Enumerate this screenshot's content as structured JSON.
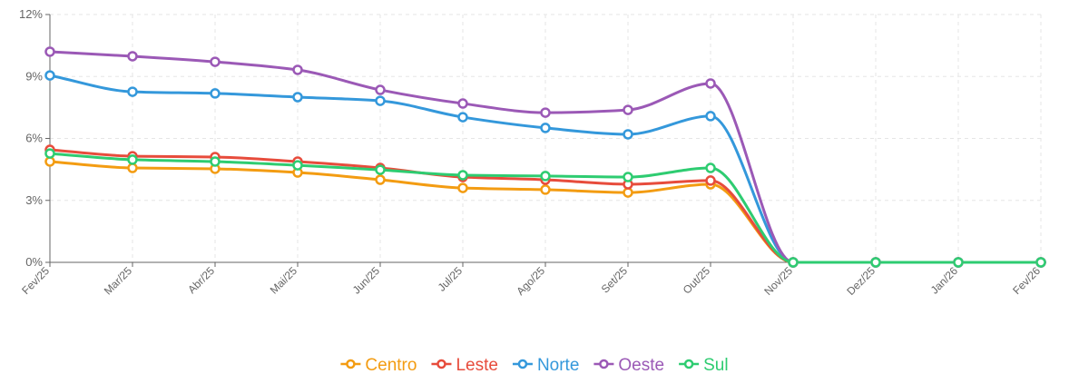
{
  "chart_data": {
    "type": "line",
    "categories": [
      "Fev/25",
      "Mar/25",
      "Abr/25",
      "Mai/25",
      "Jun/25",
      "Jul/25",
      "Ago/25",
      "Set/25",
      "Out/25",
      "Nov/25",
      "Dez/25",
      "Jan/26",
      "Fev/26"
    ],
    "series": [
      {
        "name": "Centro",
        "color": "#f39c12",
        "values": [
          4.88,
          4.57,
          4.53,
          4.35,
          4.0,
          3.6,
          3.52,
          3.38,
          3.78,
          0,
          0,
          0,
          0
        ]
      },
      {
        "name": "Leste",
        "color": "#e74c3c",
        "values": [
          5.45,
          5.14,
          5.1,
          4.88,
          4.57,
          4.13,
          4.0,
          3.78,
          3.96,
          0,
          0,
          0,
          0
        ]
      },
      {
        "name": "Norte",
        "color": "#3498db",
        "values": [
          9.05,
          8.26,
          8.18,
          8.0,
          7.82,
          7.03,
          6.51,
          6.2,
          7.08,
          0,
          0,
          0,
          0
        ]
      },
      {
        "name": "Oeste",
        "color": "#9b59b6",
        "values": [
          10.2,
          9.98,
          9.71,
          9.32,
          8.35,
          7.69,
          7.25,
          7.38,
          8.66,
          0,
          0,
          0,
          0
        ]
      },
      {
        "name": "Sul",
        "color": "#2ecc71",
        "values": [
          5.27,
          4.97,
          4.88,
          4.7,
          4.48,
          4.22,
          4.18,
          4.13,
          4.57,
          0,
          0,
          0,
          0
        ]
      }
    ],
    "ylim": [
      0,
      12
    ],
    "yticks": [
      {
        "value": 0,
        "label": "0%"
      },
      {
        "value": 3,
        "label": "3%"
      },
      {
        "value": 6,
        "label": "6%"
      },
      {
        "value": 9,
        "label": "9%"
      },
      {
        "value": 12,
        "label": "12%"
      }
    ],
    "grid": true,
    "legend": "bottom"
  }
}
